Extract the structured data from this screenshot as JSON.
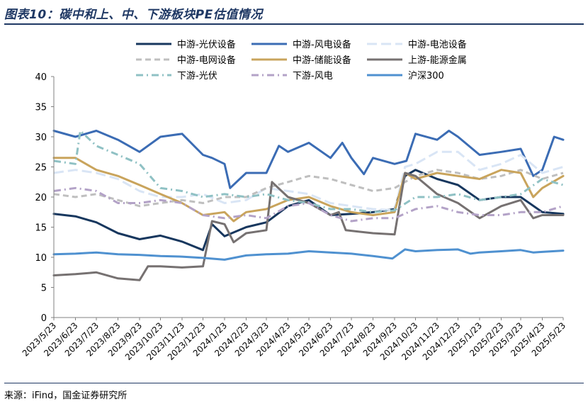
{
  "title": "图表10：碳中和上、中、下游板块PE估值情况",
  "source": "来源：iFind，国金证券研究所",
  "chart_data": {
    "type": "line",
    "ylim": [
      0,
      40
    ],
    "yticks": [
      0,
      5,
      10,
      15,
      20,
      25,
      30,
      35,
      40
    ],
    "xlim": [
      "2023/5/23",
      "2025/5/23"
    ],
    "xticks": [
      "2023/5/23",
      "2023/6/23",
      "2023/7/23",
      "2023/8/23",
      "2023/9/23",
      "2023/10/23",
      "2023/11/23",
      "2023/12/23",
      "2024/1/23",
      "2024/2/23",
      "2024/3/23",
      "2024/4/23",
      "2024/5/23",
      "2024/6/23",
      "2024/7/23",
      "2024/8/23",
      "2024/9/23",
      "2024/10/23",
      "2024/11/23",
      "2024/12/23",
      "2025/1/23",
      "2025/2/23",
      "2025/3/23",
      "2025/4/23",
      "2025/5/23"
    ],
    "legend_position": "top",
    "series": [
      {
        "name": "中游-光伏设备",
        "color": "#17375e",
        "dash": "solid",
        "width": 3,
        "points": [
          [
            "2023/5/23",
            17.2
          ],
          [
            "2023/6/23",
            16.8
          ],
          [
            "2023/7/23",
            15.8
          ],
          [
            "2023/8/23",
            14.0
          ],
          [
            "2023/9/23",
            13.0
          ],
          [
            "2023/10/23",
            13.6
          ],
          [
            "2023/11/23",
            12.6
          ],
          [
            "2023/12/23",
            11.2
          ],
          [
            "2024/1/5",
            15.5
          ],
          [
            "2024/1/23",
            13.5
          ],
          [
            "2024/2/23",
            15.0
          ],
          [
            "2024/3/23",
            15.8
          ],
          [
            "2024/4/23",
            18.5
          ],
          [
            "2024/5/23",
            19.5
          ],
          [
            "2024/6/23",
            17.0
          ],
          [
            "2024/7/23",
            17.2
          ],
          [
            "2024/8/23",
            17.5
          ],
          [
            "2024/9/23",
            18.0
          ],
          [
            "2024/10/8",
            23.5
          ],
          [
            "2024/10/23",
            24.5
          ],
          [
            "2024/11/23",
            23.0
          ],
          [
            "2024/12/23",
            22.0
          ],
          [
            "2025/1/23",
            19.5
          ],
          [
            "2025/2/23",
            20.0
          ],
          [
            "2025/3/23",
            20.0
          ],
          [
            "2025/4/23",
            17.5
          ],
          [
            "2025/5/23",
            17.2
          ]
        ]
      },
      {
        "name": "中游-风电设备",
        "color": "#3b6cb4",
        "dash": "solid",
        "width": 3,
        "points": [
          [
            "2023/5/23",
            31.0
          ],
          [
            "2023/6/23",
            30.0
          ],
          [
            "2023/7/23",
            31.0
          ],
          [
            "2023/8/23",
            29.5
          ],
          [
            "2023/9/23",
            27.5
          ],
          [
            "2023/10/23",
            30.0
          ],
          [
            "2023/11/23",
            30.5
          ],
          [
            "2023/12/23",
            27.0
          ],
          [
            "2024/1/5",
            26.5
          ],
          [
            "2024/1/23",
            25.5
          ],
          [
            "2024/1/31",
            21.5
          ],
          [
            "2024/2/23",
            24.0
          ],
          [
            "2024/3/23",
            24.0
          ],
          [
            "2024/4/10",
            28.5
          ],
          [
            "2024/4/23",
            27.5
          ],
          [
            "2024/5/23",
            29.0
          ],
          [
            "2024/6/23",
            26.5
          ],
          [
            "2024/7/10",
            29.0
          ],
          [
            "2024/7/23",
            26.5
          ],
          [
            "2024/8/10",
            23.8
          ],
          [
            "2024/8/23",
            26.5
          ],
          [
            "2024/9/23",
            25.5
          ],
          [
            "2024/10/10",
            26.0
          ],
          [
            "2024/10/23",
            30.5
          ],
          [
            "2024/11/23",
            29.5
          ],
          [
            "2024/12/10",
            31.0
          ],
          [
            "2024/12/23",
            30.0
          ],
          [
            "2025/1/23",
            27.0
          ],
          [
            "2025/2/23",
            27.5
          ],
          [
            "2025/3/23",
            28.0
          ],
          [
            "2025/4/10",
            23.5
          ],
          [
            "2025/4/23",
            24.5
          ],
          [
            "2025/5/10",
            30.0
          ],
          [
            "2025/5/23",
            29.5
          ]
        ]
      },
      {
        "name": "中游-电池设备",
        "color": "#d9e5f5",
        "dash": "longdash",
        "width": 3,
        "points": [
          [
            "2023/5/23",
            24.0
          ],
          [
            "2023/6/23",
            24.5
          ],
          [
            "2023/7/23",
            24.0
          ],
          [
            "2023/8/23",
            23.0
          ],
          [
            "2023/9/23",
            21.0
          ],
          [
            "2023/10/23",
            20.0
          ],
          [
            "2023/11/23",
            20.0
          ],
          [
            "2023/12/23",
            20.5
          ],
          [
            "2024/1/23",
            19.0
          ],
          [
            "2024/2/23",
            19.5
          ],
          [
            "2024/3/23",
            21.5
          ],
          [
            "2024/4/23",
            21.0
          ],
          [
            "2024/5/23",
            20.5
          ],
          [
            "2024/6/23",
            19.0
          ],
          [
            "2024/7/23",
            18.5
          ],
          [
            "2024/8/23",
            18.0
          ],
          [
            "2024/9/23",
            17.8
          ],
          [
            "2024/10/8",
            25.0
          ],
          [
            "2024/10/23",
            25.5
          ],
          [
            "2024/11/23",
            27.5
          ],
          [
            "2024/12/23",
            27.5
          ],
          [
            "2025/1/23",
            24.5
          ],
          [
            "2025/2/23",
            25.5
          ],
          [
            "2025/3/23",
            27.0
          ],
          [
            "2025/4/23",
            24.0
          ],
          [
            "2025/5/23",
            25.0
          ]
        ]
      },
      {
        "name": "中游-电网设备",
        "color": "#bfbfbf",
        "dash": "dash",
        "width": 3,
        "points": [
          [
            "2023/5/23",
            20.5
          ],
          [
            "2023/6/23",
            20.0
          ],
          [
            "2023/7/23",
            20.5
          ],
          [
            "2023/8/23",
            19.5
          ],
          [
            "2023/9/23",
            18.5
          ],
          [
            "2023/10/23",
            19.0
          ],
          [
            "2023/11/23",
            19.5
          ],
          [
            "2023/12/23",
            19.0
          ],
          [
            "2024/1/23",
            20.0
          ],
          [
            "2024/2/23",
            20.0
          ],
          [
            "2024/3/23",
            21.5
          ],
          [
            "2024/4/23",
            22.5
          ],
          [
            "2024/5/23",
            23.5
          ],
          [
            "2024/6/23",
            23.0
          ],
          [
            "2024/7/23",
            22.0
          ],
          [
            "2024/8/23",
            21.0
          ],
          [
            "2024/9/23",
            21.5
          ],
          [
            "2024/10/23",
            23.5
          ],
          [
            "2024/11/23",
            24.5
          ],
          [
            "2024/12/23",
            24.0
          ],
          [
            "2025/1/23",
            23.0
          ],
          [
            "2025/2/23",
            23.5
          ],
          [
            "2025/3/23",
            24.5
          ],
          [
            "2025/4/23",
            23.0
          ],
          [
            "2025/5/23",
            24.0
          ]
        ]
      },
      {
        "name": "中游-储能设备",
        "color": "#c9a45c",
        "dash": "solid",
        "width": 3,
        "points": [
          [
            "2023/5/23",
            26.5
          ],
          [
            "2023/6/23",
            26.5
          ],
          [
            "2023/7/23",
            24.5
          ],
          [
            "2023/8/23",
            23.5
          ],
          [
            "2023/9/23",
            22.0
          ],
          [
            "2023/10/23",
            20.5
          ],
          [
            "2023/11/23",
            19.0
          ],
          [
            "2023/12/23",
            17.0
          ],
          [
            "2024/1/23",
            17.5
          ],
          [
            "2024/2/5",
            16.0
          ],
          [
            "2024/2/23",
            17.5
          ],
          [
            "2024/3/23",
            18.0
          ],
          [
            "2024/4/23",
            19.5
          ],
          [
            "2024/5/23",
            20.0
          ],
          [
            "2024/6/23",
            18.5
          ],
          [
            "2024/7/23",
            17.5
          ],
          [
            "2024/8/23",
            17.0
          ],
          [
            "2024/9/23",
            17.5
          ],
          [
            "2024/10/8",
            24.0
          ],
          [
            "2024/10/23",
            23.0
          ],
          [
            "2024/11/23",
            24.0
          ],
          [
            "2024/12/23",
            23.5
          ],
          [
            "2025/1/23",
            23.0
          ],
          [
            "2025/2/23",
            24.5
          ],
          [
            "2025/3/23",
            24.0
          ],
          [
            "2025/4/10",
            20.0
          ],
          [
            "2025/4/23",
            21.5
          ],
          [
            "2025/5/23",
            23.5
          ]
        ]
      },
      {
        "name": "上游-能源金属",
        "color": "#767171",
        "dash": "solid",
        "width": 3,
        "points": [
          [
            "2023/5/23",
            7.0
          ],
          [
            "2023/6/23",
            7.2
          ],
          [
            "2023/7/23",
            7.5
          ],
          [
            "2023/8/23",
            6.5
          ],
          [
            "2023/9/23",
            6.2
          ],
          [
            "2023/10/5",
            8.5
          ],
          [
            "2023/10/23",
            8.5
          ],
          [
            "2023/11/23",
            8.3
          ],
          [
            "2023/12/23",
            8.5
          ],
          [
            "2024/1/5",
            16.0
          ],
          [
            "2024/1/23",
            15.5
          ],
          [
            "2024/2/5",
            12.5
          ],
          [
            "2024/2/23",
            14.0
          ],
          [
            "2024/3/23",
            14.5
          ],
          [
            "2024/3/31",
            22.5
          ],
          [
            "2024/4/23",
            20.0
          ],
          [
            "2024/5/23",
            19.0
          ],
          [
            "2024/6/23",
            17.0
          ],
          [
            "2024/7/5",
            17.5
          ],
          [
            "2024/7/15",
            14.5
          ],
          [
            "2024/8/23",
            14.0
          ],
          [
            "2024/9/23",
            13.8
          ],
          [
            "2024/10/8",
            24.0
          ],
          [
            "2024/10/23",
            23.5
          ],
          [
            "2024/11/23",
            20.5
          ],
          [
            "2024/12/23",
            19.0
          ],
          [
            "2025/1/23",
            16.5
          ],
          [
            "2025/2/23",
            18.5
          ],
          [
            "2025/3/23",
            19.5
          ],
          [
            "2025/4/10",
            16.5
          ],
          [
            "2025/4/23",
            17.0
          ],
          [
            "2025/5/23",
            17.0
          ]
        ]
      },
      {
        "name": "下游-光伏",
        "color": "#8fc1c4",
        "dash": "dashdot",
        "width": 3,
        "points": [
          [
            "2023/5/23",
            26.0
          ],
          [
            "2023/6/23",
            25.5
          ],
          [
            "2023/6/30",
            31.0
          ],
          [
            "2023/7/23",
            28.5
          ],
          [
            "2023/8/23",
            27.0
          ],
          [
            "2023/9/23",
            25.5
          ],
          [
            "2023/10/23",
            21.5
          ],
          [
            "2023/11/23",
            21.0
          ],
          [
            "2023/12/23",
            20.0
          ],
          [
            "2024/1/23",
            20.5
          ],
          [
            "2024/2/23",
            20.0
          ],
          [
            "2024/3/23",
            20.5
          ],
          [
            "2024/4/23",
            19.5
          ],
          [
            "2024/5/23",
            19.0
          ],
          [
            "2024/6/23",
            18.0
          ],
          [
            "2024/7/23",
            18.0
          ],
          [
            "2024/8/23",
            17.5
          ],
          [
            "2024/9/23",
            17.8
          ],
          [
            "2024/10/23",
            20.0
          ],
          [
            "2024/11/23",
            20.0
          ],
          [
            "2024/12/23",
            20.5
          ],
          [
            "2025/1/23",
            19.5
          ],
          [
            "2025/2/23",
            20.0
          ],
          [
            "2025/3/23",
            20.5
          ],
          [
            "2025/4/23",
            23.0
          ],
          [
            "2025/5/23",
            22.0
          ]
        ]
      },
      {
        "name": "下游-风电",
        "color": "#b3a2c7",
        "dash": "dashdot",
        "width": 3,
        "points": [
          [
            "2023/5/23",
            21.0
          ],
          [
            "2023/6/23",
            21.5
          ],
          [
            "2023/7/23",
            21.0
          ],
          [
            "2023/8/23",
            19.0
          ],
          [
            "2023/9/23",
            19.0
          ],
          [
            "2023/10/23",
            19.5
          ],
          [
            "2023/11/23",
            19.0
          ],
          [
            "2023/12/23",
            17.0
          ],
          [
            "2024/1/23",
            16.5
          ],
          [
            "2024/2/23",
            17.0
          ],
          [
            "2024/3/23",
            16.5
          ],
          [
            "2024/4/23",
            18.5
          ],
          [
            "2024/5/23",
            19.0
          ],
          [
            "2024/6/23",
            17.0
          ],
          [
            "2024/7/23",
            16.0
          ],
          [
            "2024/8/23",
            16.5
          ],
          [
            "2024/9/23",
            16.5
          ],
          [
            "2024/10/23",
            18.0
          ],
          [
            "2024/11/23",
            18.5
          ],
          [
            "2024/12/23",
            17.5
          ],
          [
            "2025/1/23",
            17.0
          ],
          [
            "2025/2/23",
            17.0
          ],
          [
            "2025/3/23",
            17.5
          ],
          [
            "2025/4/23",
            17.5
          ],
          [
            "2025/5/23",
            18.5
          ]
        ]
      },
      {
        "name": "沪深300",
        "color": "#4f91d0",
        "dash": "solid",
        "width": 3,
        "points": [
          [
            "2023/5/23",
            10.5
          ],
          [
            "2023/6/23",
            10.6
          ],
          [
            "2023/7/23",
            10.8
          ],
          [
            "2023/8/23",
            10.5
          ],
          [
            "2023/9/23",
            10.4
          ],
          [
            "2023/10/23",
            10.2
          ],
          [
            "2023/11/23",
            10.1
          ],
          [
            "2023/12/23",
            9.9
          ],
          [
            "2024/1/23",
            9.6
          ],
          [
            "2024/2/23",
            10.3
          ],
          [
            "2024/3/23",
            10.5
          ],
          [
            "2024/4/23",
            10.6
          ],
          [
            "2024/5/23",
            11.0
          ],
          [
            "2024/6/23",
            10.8
          ],
          [
            "2024/7/23",
            10.6
          ],
          [
            "2024/8/23",
            10.2
          ],
          [
            "2024/9/20",
            9.8
          ],
          [
            "2024/10/8",
            11.3
          ],
          [
            "2024/10/23",
            11.0
          ],
          [
            "2024/11/23",
            11.2
          ],
          [
            "2024/12/23",
            11.3
          ],
          [
            "2025/1/10",
            10.6
          ],
          [
            "2025/1/23",
            10.8
          ],
          [
            "2025/2/23",
            11.0
          ],
          [
            "2025/3/23",
            11.2
          ],
          [
            "2025/4/10",
            10.8
          ],
          [
            "2025/4/23",
            10.9
          ],
          [
            "2025/5/23",
            11.1
          ]
        ]
      }
    ]
  }
}
